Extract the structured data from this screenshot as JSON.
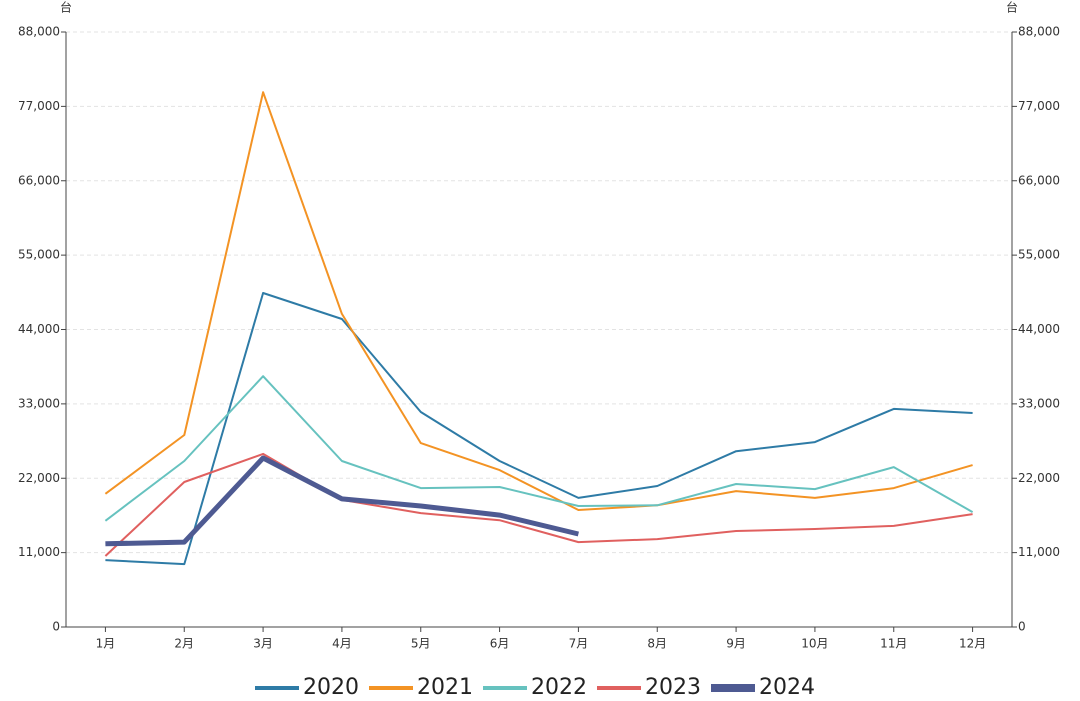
{
  "chart_data": {
    "type": "line",
    "y_unit": "台",
    "y2_unit": "台",
    "categories": [
      "1月",
      "2月",
      "3月",
      "4月",
      "5月",
      "6月",
      "7月",
      "8月",
      "9月",
      "10月",
      "11月",
      "12月"
    ],
    "series": [
      {
        "name": "2020",
        "color": "#2e7ba6",
        "values": [
          9900,
          9300,
          49400,
          45550,
          31800,
          24550,
          19100,
          20850,
          26000,
          27350,
          32250,
          31650
        ]
      },
      {
        "name": "2021",
        "color": "#f39324",
        "values": [
          19700,
          28400,
          79100,
          46300,
          27200,
          23200,
          17300,
          18000,
          20100,
          19100,
          20550,
          23950
        ]
      },
      {
        "name": "2022",
        "color": "#66c2bf",
        "values": [
          15700,
          24550,
          37100,
          24550,
          20550,
          20700,
          17900,
          18000,
          21150,
          20400,
          23650,
          17000
        ]
      },
      {
        "name": "2023",
        "color": "#e0605f",
        "values": [
          10500,
          21450,
          25600,
          18800,
          16850,
          15800,
          12550,
          13000,
          14200,
          14500,
          14950,
          16700
        ]
      },
      {
        "name": "2024",
        "color": "#4e5a92",
        "values": [
          12300,
          12550,
          25000,
          18950,
          17900,
          16550,
          13750,
          null,
          null,
          null,
          null,
          null
        ]
      }
    ],
    "ylim": [
      0,
      88000
    ],
    "yticks": [
      0,
      {
        "value": 11000,
        "label": "11,000"
      },
      {
        "value": 22000,
        "label": "22,000"
      },
      {
        "value": 33000,
        "label": "33,000"
      },
      {
        "value": 44000,
        "label": "44,000"
      },
      {
        "value": 55000,
        "label": "55,000"
      },
      {
        "value": 66000,
        "label": "66,000"
      },
      {
        "value": 77000,
        "label": "77,000"
      },
      {
        "value": 88000,
        "label": "88,000"
      }
    ],
    "y2lim": [
      0,
      88000
    ],
    "y2ticks": [
      0,
      {
        "value": 11000,
        "label": "11,000"
      },
      {
        "value": 22000,
        "label": "22,000"
      },
      {
        "value": 33000,
        "label": "33,000"
      },
      {
        "value": 44000,
        "label": "44,000"
      },
      {
        "value": 55000,
        "label": "55,000"
      },
      {
        "value": 66000,
        "label": "66,000"
      },
      {
        "value": 77000,
        "label": "77,000"
      },
      {
        "value": 88000,
        "label": "88,000"
      }
    ],
    "grid": true,
    "legend": "bottom"
  }
}
